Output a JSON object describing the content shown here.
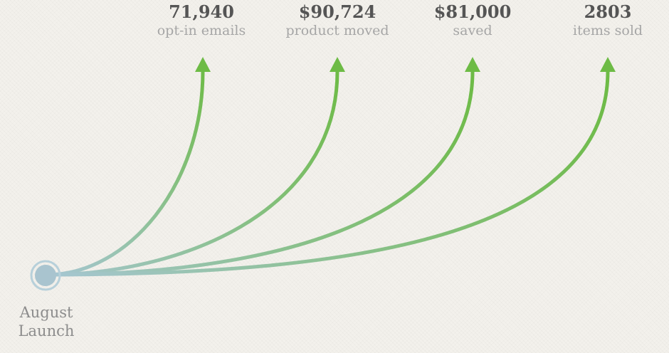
{
  "origin": {
    "label_line1": "August",
    "label_line2": "Launch"
  },
  "metrics": [
    {
      "value": "71,940",
      "label": "opt-in emails"
    },
    {
      "value": "$90,724",
      "label": "product moved"
    },
    {
      "value": "$81,000",
      "label": "saved"
    },
    {
      "value": "2803",
      "label": "items sold"
    }
  ],
  "colors": {
    "background": "#f3f1ec",
    "arrow_start": "#a6c6d2",
    "arrow_end": "#6dbb45",
    "node_fill": "#a9c4cf",
    "node_ring": "#b7d0da",
    "value_text": "#555555",
    "label_text": "#a6a6a6"
  }
}
